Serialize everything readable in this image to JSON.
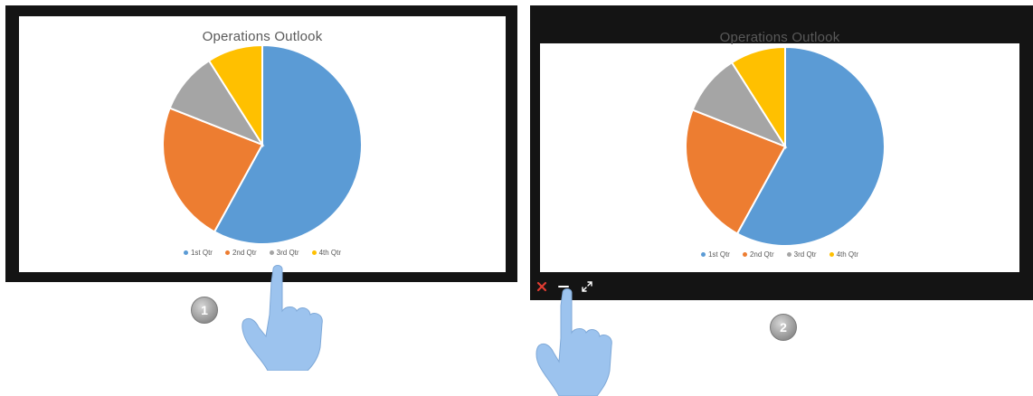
{
  "colors": {
    "q1": "#5b9bd5",
    "q2": "#ed7d31",
    "q3": "#a5a5a5",
    "q4": "#ffc000",
    "bezel": "#141414",
    "close_icon": "#e03c31",
    "hand": "#9cc3ee"
  },
  "screen1": {
    "chart_title": "Operations Outlook",
    "legend": [
      "1st Qtr",
      "2nd Qtr",
      "3rd Qtr",
      "4th Qtr"
    ]
  },
  "screen2": {
    "chart_title": "Operations Outlook",
    "legend": [
      "1st Qtr",
      "2nd Qtr",
      "3rd Qtr",
      "4th Qtr"
    ],
    "controls": {
      "close": "close-icon",
      "minimize": "minimize-icon",
      "fullscreen": "expand-icon"
    }
  },
  "badges": [
    "1",
    "2"
  ],
  "chart_data": [
    {
      "type": "pie",
      "title": "Operations Outlook",
      "categories": [
        "1st Qtr",
        "2nd Qtr",
        "3rd Qtr",
        "4th Qtr"
      ],
      "values": [
        58,
        23,
        10,
        9
      ],
      "legend": "bottom"
    },
    {
      "type": "pie",
      "title": "Operations Outlook",
      "categories": [
        "1st Qtr",
        "2nd Qtr",
        "3rd Qtr",
        "4th Qtr"
      ],
      "values": [
        58,
        23,
        10,
        9
      ],
      "legend": "bottom"
    }
  ]
}
